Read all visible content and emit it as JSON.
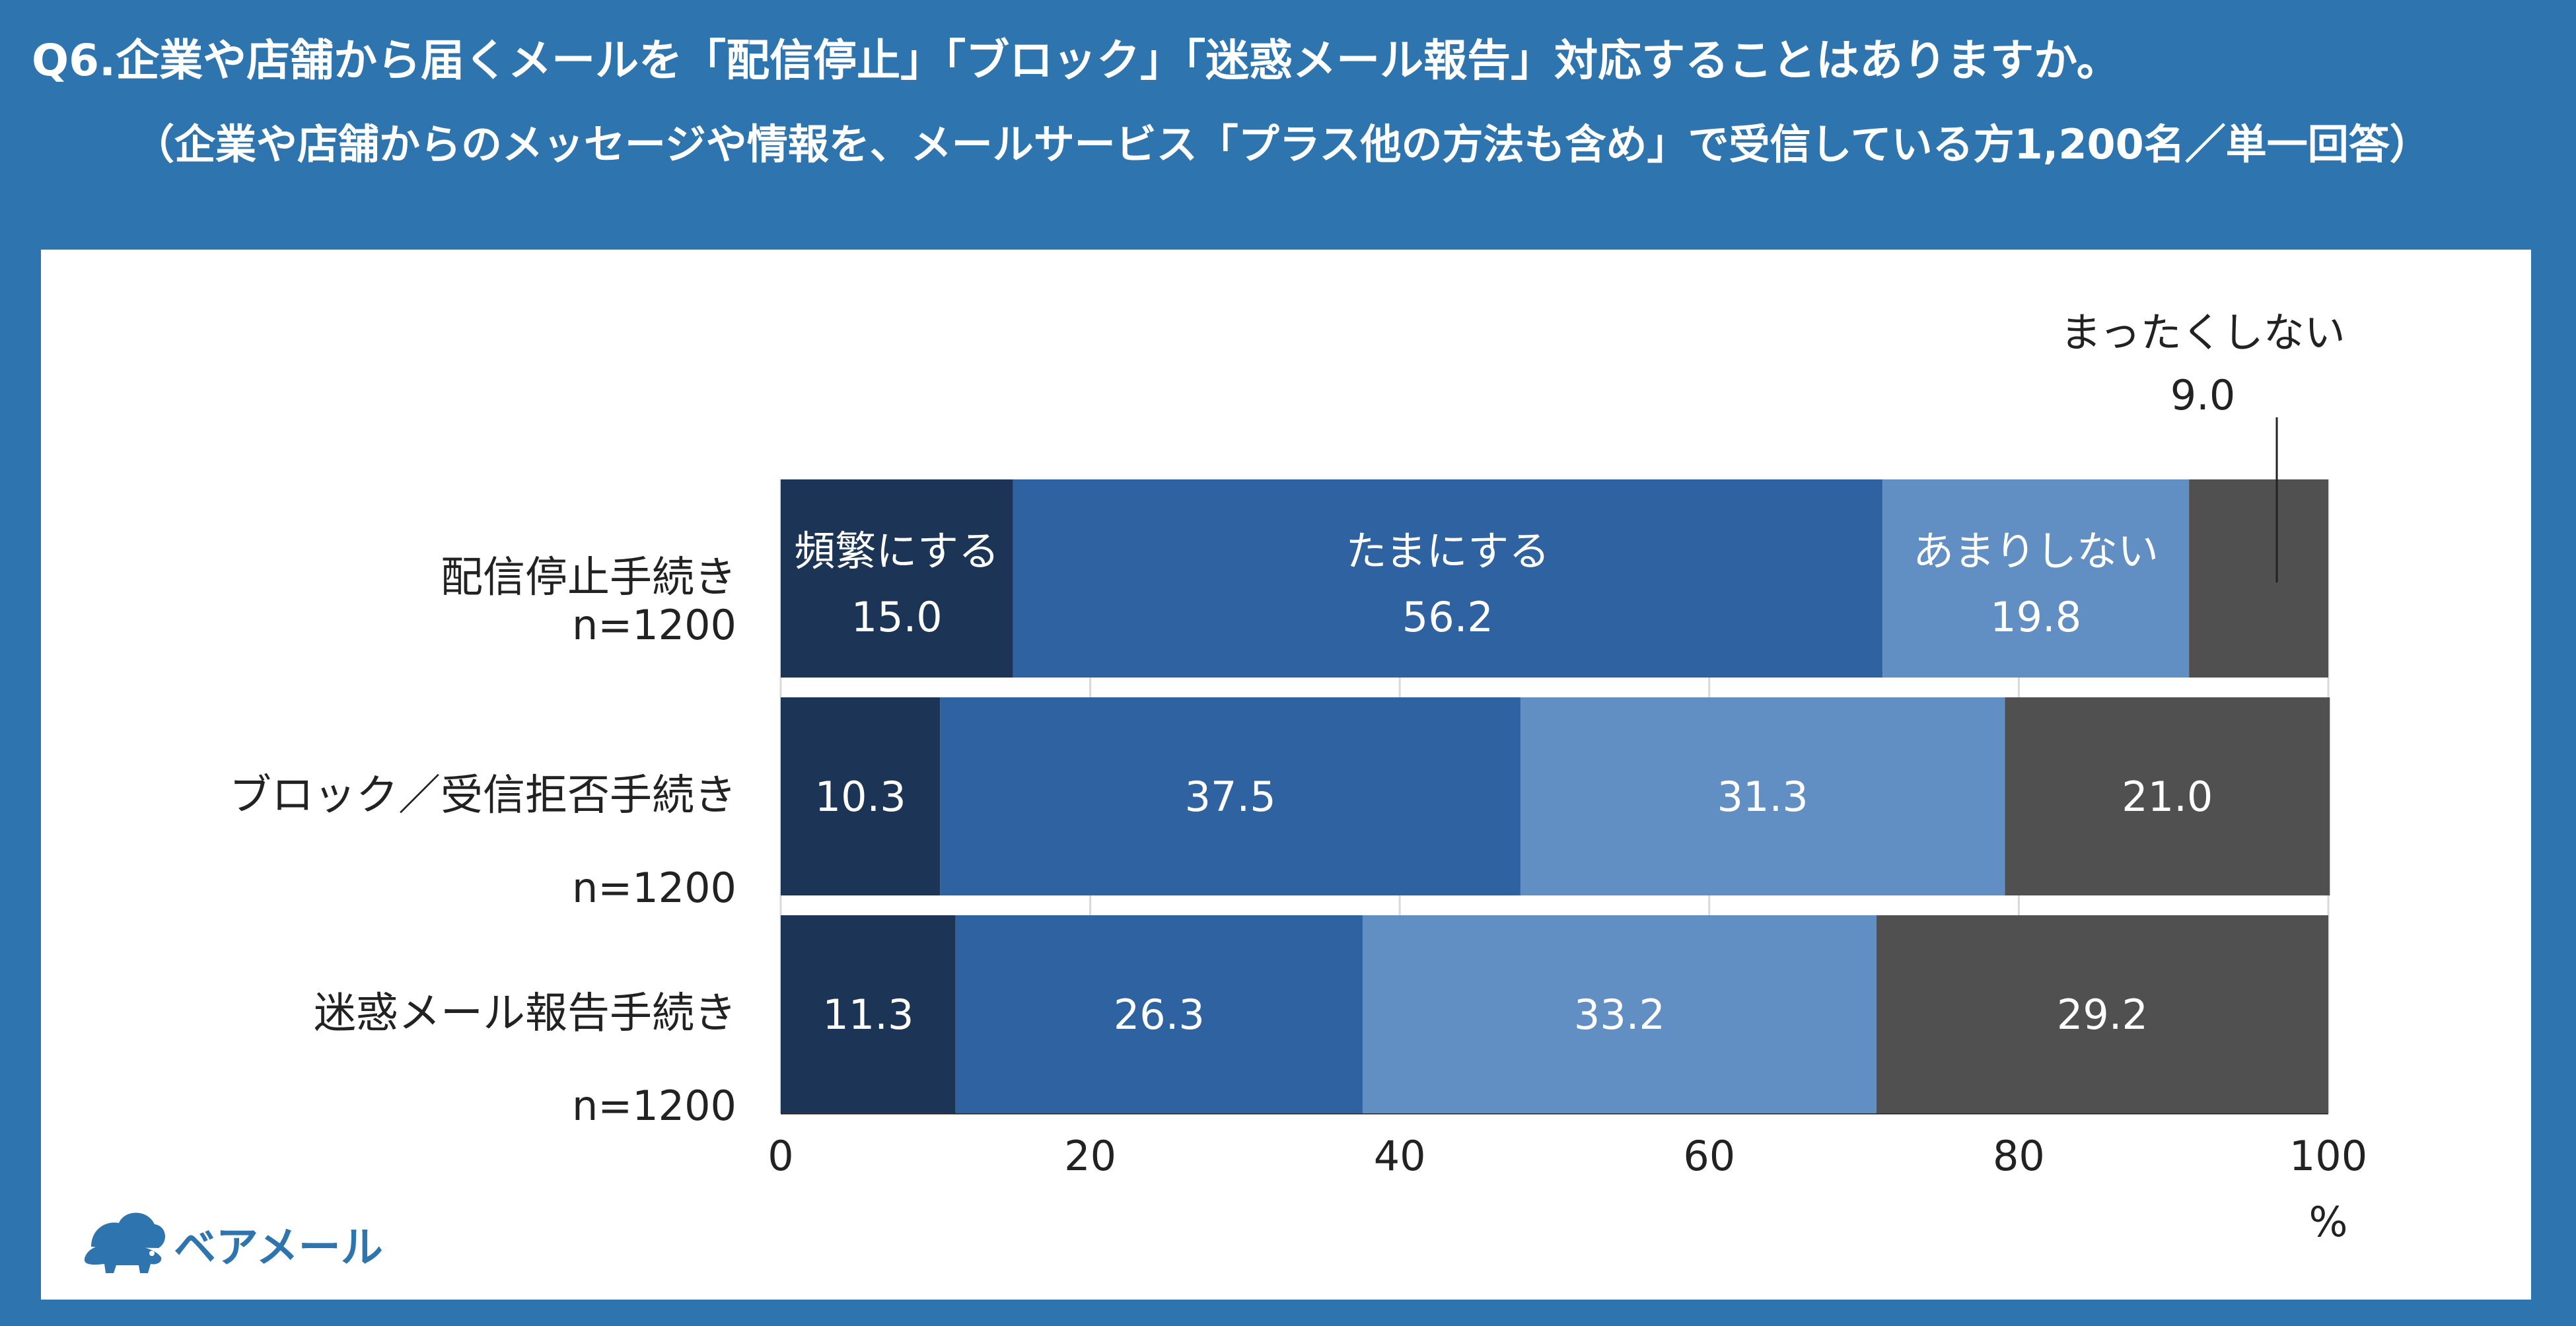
{
  "header": {
    "question": "Q6.企業や店舗から届くメールを「配信停止」「ブロック」「迷惑メール報告」対応することはありますか。",
    "subtitle": "（企業や店舗からのメッセージや情報を、メールサービス「プラス他の方法も含め」で受信している方1,200名／単一回答）"
  },
  "logo": {
    "text": "ベアメール",
    "icon": "bear-cloud-icon"
  },
  "colors": {
    "frame": "#2e75b0",
    "series": [
      "#1c3557",
      "#2e62a1",
      "#618fc4",
      "#505050"
    ]
  },
  "chart_data": {
    "type": "bar",
    "orientation": "horizontal",
    "stacked": true,
    "categories": [
      {
        "label": "配信停止手続き",
        "n": "n=1200"
      },
      {
        "label": "ブロック／受信拒否手続き",
        "n": "n=1200"
      },
      {
        "label": "迷惑メール報告手続き",
        "n": "n=1200"
      }
    ],
    "series": [
      {
        "name": "頻繁にする",
        "values": [
          15.0,
          10.3,
          11.3
        ]
      },
      {
        "name": "たまにする",
        "values": [
          56.2,
          37.5,
          26.3
        ]
      },
      {
        "name": "あまりしない",
        "values": [
          19.8,
          31.3,
          33.2
        ]
      },
      {
        "name": "まったくしない",
        "values": [
          9.0,
          21.0,
          29.2
        ]
      }
    ],
    "xlim": [
      0,
      100
    ],
    "xticks": [
      "0",
      "20",
      "40",
      "60",
      "80",
      "100"
    ],
    "xunit": "%",
    "grid": true,
    "legend": "inline-first-bar"
  }
}
